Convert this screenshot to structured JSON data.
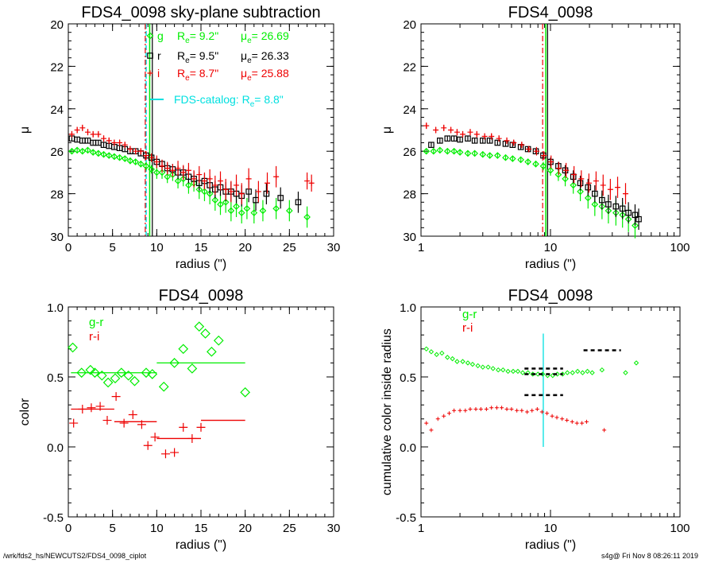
{
  "colors": {
    "g": "#00ee00",
    "r": "#000000",
    "i": "#ee0000",
    "catalog": "#00e0e0",
    "axis": "#000000"
  },
  "footer": {
    "left": "/wrk/fds2_hs/NEWCUTS2/FDS4_0098_ciplot",
    "right": "s4g@  Fri Nov  8 08:26:11 2019"
  },
  "chart_data": [
    {
      "type": "scatter",
      "title": "FDS4_0098 sky-plane subtraction",
      "xlabel": "radius (\")",
      "ylabel": "μ",
      "xlim": [
        0,
        30
      ],
      "ylim": [
        30,
        20
      ],
      "x_ticks": [
        "0",
        "5",
        "10",
        "15",
        "20",
        "25",
        "30"
      ],
      "y_ticks": [
        "20",
        "22",
        "24",
        "26",
        "28",
        "30"
      ],
      "legend": [
        {
          "band": "g",
          "re": "9.2\"",
          "mue": "26.69"
        },
        {
          "band": "r",
          "re": "9.5\"",
          "mue": "26.33"
        },
        {
          "band": "i",
          "re": "8.7\"",
          "mue": "25.88"
        }
      ],
      "catalog_label": "FDS-catalog: R",
      "catalog_re": "8.8\"",
      "vlines": {
        "g": 9.2,
        "r": 9.5,
        "i": 8.7,
        "catalog": 8.8
      },
      "series": [
        {
          "name": "g",
          "x": [
            0.4,
            1.0,
            1.6,
            2.2,
            2.8,
            3.4,
            4.0,
            4.6,
            5.2,
            5.8,
            6.4,
            7.0,
            7.6,
            8.2,
            8.8,
            9.4,
            10.0,
            10.6,
            11.2,
            11.8,
            12.4,
            13.0,
            13.6,
            14.2,
            14.8,
            15.4,
            16.0,
            16.6,
            17.2,
            17.8,
            18.4,
            19.0,
            19.6,
            20.2,
            21.0,
            22.0,
            23.5,
            25.0,
            27.0
          ],
          "y": [
            26.0,
            25.95,
            26.0,
            25.95,
            26.05,
            26.1,
            26.15,
            26.2,
            26.25,
            26.3,
            26.35,
            26.45,
            26.5,
            26.6,
            26.7,
            26.85,
            27.0,
            27.0,
            27.2,
            27.1,
            27.4,
            27.3,
            27.6,
            27.5,
            27.8,
            27.9,
            28.0,
            28.3,
            28.5,
            28.4,
            28.8,
            28.6,
            28.9,
            28.7,
            28.9,
            28.8,
            28.7,
            28.8,
            29.1
          ],
          "err": [
            0.1,
            0.1,
            0.1,
            0.1,
            0.1,
            0.1,
            0.1,
            0.1,
            0.12,
            0.12,
            0.12,
            0.15,
            0.15,
            0.15,
            0.2,
            0.2,
            0.3,
            0.3,
            0.3,
            0.3,
            0.35,
            0.35,
            0.4,
            0.4,
            0.45,
            0.45,
            0.5,
            0.5,
            0.5,
            0.5,
            0.5,
            0.5,
            0.5,
            0.5,
            0.5,
            0.5,
            0.5,
            0.5,
            0.5
          ]
        },
        {
          "name": "r",
          "x": [
            0.4,
            1.0,
            1.6,
            2.2,
            2.8,
            3.4,
            4.0,
            4.6,
            5.2,
            5.8,
            6.4,
            7.0,
            7.6,
            8.2,
            8.8,
            9.4,
            10.0,
            10.6,
            11.2,
            11.8,
            12.4,
            13.0,
            13.6,
            14.2,
            14.8,
            15.4,
            16.0,
            16.6,
            17.2,
            17.8,
            18.4,
            19.0,
            19.6,
            20.4,
            21.2,
            22.4,
            24.0,
            26.0
          ],
          "y": [
            25.4,
            25.45,
            25.5,
            25.5,
            25.6,
            25.6,
            25.7,
            25.75,
            25.8,
            25.85,
            25.9,
            26.0,
            26.0,
            26.1,
            26.2,
            26.3,
            26.5,
            26.6,
            26.8,
            26.85,
            27.0,
            27.0,
            27.2,
            27.3,
            27.5,
            27.4,
            27.6,
            27.8,
            27.7,
            27.9,
            27.9,
            28.0,
            28.1,
            27.9,
            28.3,
            28.0,
            28.2,
            28.4
          ],
          "err": [
            0.1,
            0.1,
            0.1,
            0.1,
            0.1,
            0.1,
            0.1,
            0.1,
            0.1,
            0.1,
            0.1,
            0.12,
            0.12,
            0.12,
            0.15,
            0.15,
            0.2,
            0.2,
            0.25,
            0.25,
            0.3,
            0.3,
            0.3,
            0.35,
            0.35,
            0.35,
            0.4,
            0.4,
            0.4,
            0.45,
            0.45,
            0.45,
            0.5,
            0.5,
            0.5,
            0.5,
            0.5,
            0.5
          ]
        },
        {
          "name": "i",
          "x": [
            0.4,
            1.0,
            1.6,
            2.2,
            2.8,
            3.4,
            4.0,
            4.6,
            5.2,
            5.8,
            6.4,
            7.0,
            7.6,
            8.2,
            8.8,
            9.4,
            10.0,
            10.6,
            11.2,
            11.8,
            12.4,
            13.0,
            13.6,
            14.2,
            14.8,
            15.4,
            16.0,
            16.6,
            17.2,
            17.8,
            18.4,
            19.0,
            19.6,
            20.4,
            21.5,
            22.5,
            23.5,
            27.0,
            27.5
          ],
          "y": [
            25.2,
            25.0,
            24.9,
            25.1,
            25.2,
            25.2,
            25.4,
            25.5,
            25.6,
            25.6,
            25.7,
            25.9,
            26.0,
            26.0,
            26.2,
            26.3,
            26.5,
            26.7,
            26.8,
            26.9,
            26.8,
            27.0,
            26.9,
            27.3,
            27.1,
            27.4,
            27.3,
            27.6,
            27.4,
            27.8,
            27.9,
            27.6,
            28.0,
            27.3,
            27.9,
            27.5,
            27.2,
            27.4,
            27.5
          ],
          "err": [
            0.15,
            0.15,
            0.15,
            0.15,
            0.15,
            0.15,
            0.15,
            0.15,
            0.15,
            0.15,
            0.15,
            0.15,
            0.15,
            0.15,
            0.2,
            0.2,
            0.3,
            0.3,
            0.3,
            0.3,
            0.35,
            0.35,
            0.35,
            0.4,
            0.4,
            0.4,
            0.45,
            0.45,
            0.45,
            0.5,
            0.5,
            0.5,
            0.5,
            0.5,
            0.5,
            0.5,
            0.5,
            0.4,
            0.4
          ]
        }
      ]
    },
    {
      "type": "scatter",
      "title": "FDS4_0098",
      "xlabel": "radius (\")",
      "ylabel": "μ",
      "xscale": "log",
      "xlim": [
        1,
        100
      ],
      "ylim": [
        30,
        20
      ],
      "x_ticks": [
        "1",
        "10",
        "100"
      ],
      "y_ticks": [
        "20",
        "22",
        "24",
        "26",
        "28",
        "30"
      ],
      "vlines": {
        "g": 9.2,
        "r": 9.5,
        "i": 8.7
      },
      "series": [
        {
          "name": "g",
          "x": [
            1.1,
            1.25,
            1.4,
            1.6,
            1.8,
            2.0,
            2.3,
            2.6,
            3.0,
            3.4,
            3.9,
            4.5,
            5.1,
            5.9,
            6.7,
            7.7,
            8.8,
            10.0,
            11.5,
            13.0,
            15.0,
            17.0,
            19.5,
            22.0,
            25.0,
            28.0,
            32.0,
            36.0,
            40.0,
            45.0
          ],
          "y": [
            26.0,
            26.0,
            25.95,
            26.0,
            26.0,
            26.05,
            26.1,
            26.1,
            26.15,
            26.2,
            26.2,
            26.3,
            26.35,
            26.4,
            26.5,
            26.6,
            26.7,
            26.9,
            27.1,
            27.3,
            27.6,
            27.9,
            28.2,
            28.5,
            28.6,
            28.8,
            28.9,
            29.0,
            29.2,
            29.5
          ],
          "err": [
            0.1,
            0.1,
            0.1,
            0.1,
            0.1,
            0.1,
            0.1,
            0.1,
            0.1,
            0.1,
            0.1,
            0.12,
            0.12,
            0.12,
            0.15,
            0.15,
            0.2,
            0.25,
            0.3,
            0.35,
            0.4,
            0.45,
            0.5,
            0.55,
            0.6,
            0.6,
            0.6,
            0.6,
            0.6,
            0.6
          ]
        },
        {
          "name": "r",
          "x": [
            1.2,
            1.4,
            1.6,
            1.8,
            2.0,
            2.3,
            2.6,
            3.0,
            3.4,
            3.9,
            4.5,
            5.1,
            5.9,
            6.7,
            7.7,
            8.8,
            10.0,
            11.5,
            13.0,
            15.0,
            17.0,
            19.5,
            22.0,
            25.0,
            28.0,
            32.0,
            36.0,
            40.0,
            45.0,
            48.0
          ],
          "y": [
            25.7,
            25.5,
            25.4,
            25.4,
            25.45,
            25.4,
            25.5,
            25.5,
            25.5,
            25.6,
            25.65,
            25.7,
            25.8,
            25.9,
            26.0,
            26.2,
            26.5,
            26.7,
            26.9,
            27.2,
            27.5,
            27.7,
            28.0,
            28.3,
            28.5,
            28.6,
            28.7,
            28.9,
            29.0,
            29.2
          ],
          "err": [
            0.1,
            0.1,
            0.1,
            0.1,
            0.1,
            0.1,
            0.1,
            0.1,
            0.1,
            0.1,
            0.1,
            0.1,
            0.1,
            0.12,
            0.12,
            0.15,
            0.2,
            0.2,
            0.25,
            0.3,
            0.35,
            0.4,
            0.4,
            0.45,
            0.45,
            0.5,
            0.5,
            0.5,
            0.5,
            0.5
          ]
        },
        {
          "name": "i",
          "x": [
            1.1,
            1.3,
            1.5,
            1.7,
            1.9,
            2.1,
            2.4,
            2.7,
            3.1,
            3.5,
            4.0,
            4.6,
            5.2,
            6.0,
            6.8,
            7.8,
            8.9,
            10.1,
            11.6,
            13.2,
            15.2,
            17.3,
            19.8,
            22.5,
            25.5,
            29.0,
            33.0,
            38.0
          ],
          "y": [
            24.8,
            25.0,
            24.9,
            25.0,
            25.1,
            25.2,
            25.1,
            25.2,
            25.3,
            25.3,
            25.4,
            25.5,
            25.6,
            25.7,
            25.9,
            26.0,
            26.2,
            26.5,
            26.8,
            26.9,
            27.1,
            27.3,
            27.5,
            27.4,
            27.6,
            27.8,
            27.7,
            28.0
          ],
          "err": [
            0.15,
            0.15,
            0.15,
            0.15,
            0.15,
            0.15,
            0.15,
            0.15,
            0.15,
            0.15,
            0.15,
            0.15,
            0.15,
            0.15,
            0.15,
            0.2,
            0.2,
            0.3,
            0.3,
            0.35,
            0.4,
            0.4,
            0.45,
            0.45,
            0.5,
            0.5,
            0.5,
            0.5
          ]
        }
      ]
    },
    {
      "type": "scatter",
      "title": "FDS4_0098",
      "xlabel": "radius (\")",
      "ylabel": "color",
      "xlim": [
        0,
        30
      ],
      "ylim": [
        -0.5,
        1.0
      ],
      "x_ticks": [
        "0",
        "5",
        "10",
        "15",
        "20",
        "25",
        "30"
      ],
      "y_ticks": [
        "-0.5",
        "0.0",
        "0.5",
        "1.0"
      ],
      "legend": [
        {
          "name": "g-r"
        },
        {
          "name": "r-i"
        }
      ],
      "series": [
        {
          "name": "g-r",
          "x": [
            0.5,
            1.5,
            2.5,
            3.0,
            3.8,
            4.5,
            5.3,
            6.0,
            6.8,
            7.5,
            8.8,
            9.5,
            10.8,
            12.0,
            13.0,
            14.0,
            14.8,
            15.5,
            16.2,
            17.0,
            20.0
          ],
          "y": [
            0.71,
            0.53,
            0.55,
            0.53,
            0.51,
            0.46,
            0.49,
            0.53,
            0.51,
            0.47,
            0.53,
            0.52,
            0.43,
            0.6,
            0.7,
            0.56,
            0.86,
            0.81,
            0.68,
            0.76,
            0.39
          ],
          "levels": [
            {
              "x0": 0.3,
              "x1": 10.0,
              "y": 0.53
            },
            {
              "x0": 10.0,
              "x1": 20.0,
              "y": 0.6
            }
          ]
        },
        {
          "name": "r-i",
          "x": [
            0.6,
            1.6,
            2.6,
            3.6,
            4.4,
            5.4,
            6.3,
            7.3,
            8.3,
            9.0,
            9.8,
            11.0,
            12.0,
            13.0,
            14.0,
            15.0
          ],
          "y": [
            0.17,
            0.27,
            0.28,
            0.29,
            0.19,
            0.36,
            0.17,
            0.23,
            0.16,
            0.01,
            0.07,
            -0.05,
            -0.04,
            0.14,
            0.06,
            0.14
          ],
          "levels": [
            {
              "x0": 0.3,
              "x1": 5.2,
              "y": 0.27
            },
            {
              "x0": 5.2,
              "x1": 10.0,
              "y": 0.18
            },
            {
              "x0": 10.0,
              "x1": 15.0,
              "y": 0.06
            },
            {
              "x0": 15.0,
              "x1": 20.0,
              "y": 0.19
            }
          ]
        }
      ]
    },
    {
      "type": "scatter",
      "title": "FDS4_0098",
      "xlabel": "radius (\")",
      "ylabel": "cumulative color inside radius",
      "xscale": "log",
      "xlim": [
        1,
        100
      ],
      "ylim": [
        -0.5,
        1.0
      ],
      "x_ticks": [
        "1",
        "10",
        "100"
      ],
      "y_ticks": [
        "-0.5",
        "0.0",
        "0.5",
        "1.0"
      ],
      "legend": [
        {
          "name": "g-r"
        },
        {
          "name": "r-i"
        }
      ],
      "vline": {
        "x": 8.8,
        "y0": 0.0,
        "y1": 0.81
      },
      "series": [
        {
          "name": "g-r",
          "x": [
            1.1,
            1.2,
            1.32,
            1.45,
            1.6,
            1.75,
            1.9,
            2.1,
            2.3,
            2.5,
            2.75,
            3.0,
            3.3,
            3.6,
            3.95,
            4.3,
            4.7,
            5.15,
            5.6,
            6.1,
            6.7,
            7.3,
            8.0,
            8.7,
            9.5,
            10.4,
            11.3,
            12.4,
            13.5,
            14.8,
            16.2,
            17.7,
            19.3,
            21.0,
            25.0,
            38.0,
            46.0
          ],
          "y": [
            0.7,
            0.68,
            0.66,
            0.67,
            0.64,
            0.63,
            0.61,
            0.61,
            0.6,
            0.59,
            0.58,
            0.57,
            0.57,
            0.56,
            0.55,
            0.55,
            0.54,
            0.54,
            0.54,
            0.53,
            0.53,
            0.52,
            0.52,
            0.52,
            0.51,
            0.51,
            0.52,
            0.52,
            0.53,
            0.53,
            0.54,
            0.53,
            0.54,
            0.53,
            0.55,
            0.53,
            0.6
          ],
          "bars": [
            {
              "x0": 6.3,
              "x1": 12.5,
              "y": 0.56
            },
            {
              "x0": 6.3,
              "x1": 12.5,
              "y": 0.52
            },
            {
              "x0": 18.0,
              "x1": 35.0,
              "y": 0.69
            }
          ]
        },
        {
          "name": "r-i",
          "x": [
            1.1,
            1.2,
            1.35,
            1.5,
            1.65,
            1.8,
            2.0,
            2.2,
            2.4,
            2.65,
            2.9,
            3.2,
            3.5,
            3.85,
            4.2,
            4.6,
            5.0,
            5.5,
            6.0,
            6.6,
            7.2,
            7.9,
            8.6,
            9.4,
            10.3,
            11.2,
            12.3,
            13.4,
            14.7,
            16.0,
            17.5,
            19.0,
            26.0
          ],
          "y": [
            0.17,
            0.12,
            0.2,
            0.22,
            0.24,
            0.26,
            0.26,
            0.26,
            0.27,
            0.27,
            0.27,
            0.27,
            0.28,
            0.28,
            0.28,
            0.27,
            0.27,
            0.26,
            0.26,
            0.25,
            0.26,
            0.27,
            0.25,
            0.24,
            0.22,
            0.21,
            0.2,
            0.19,
            0.18,
            0.17,
            0.17,
            0.18,
            0.12
          ],
          "bars": [
            {
              "x0": 6.3,
              "x1": 12.5,
              "y": 0.37
            }
          ]
        }
      ]
    }
  ]
}
